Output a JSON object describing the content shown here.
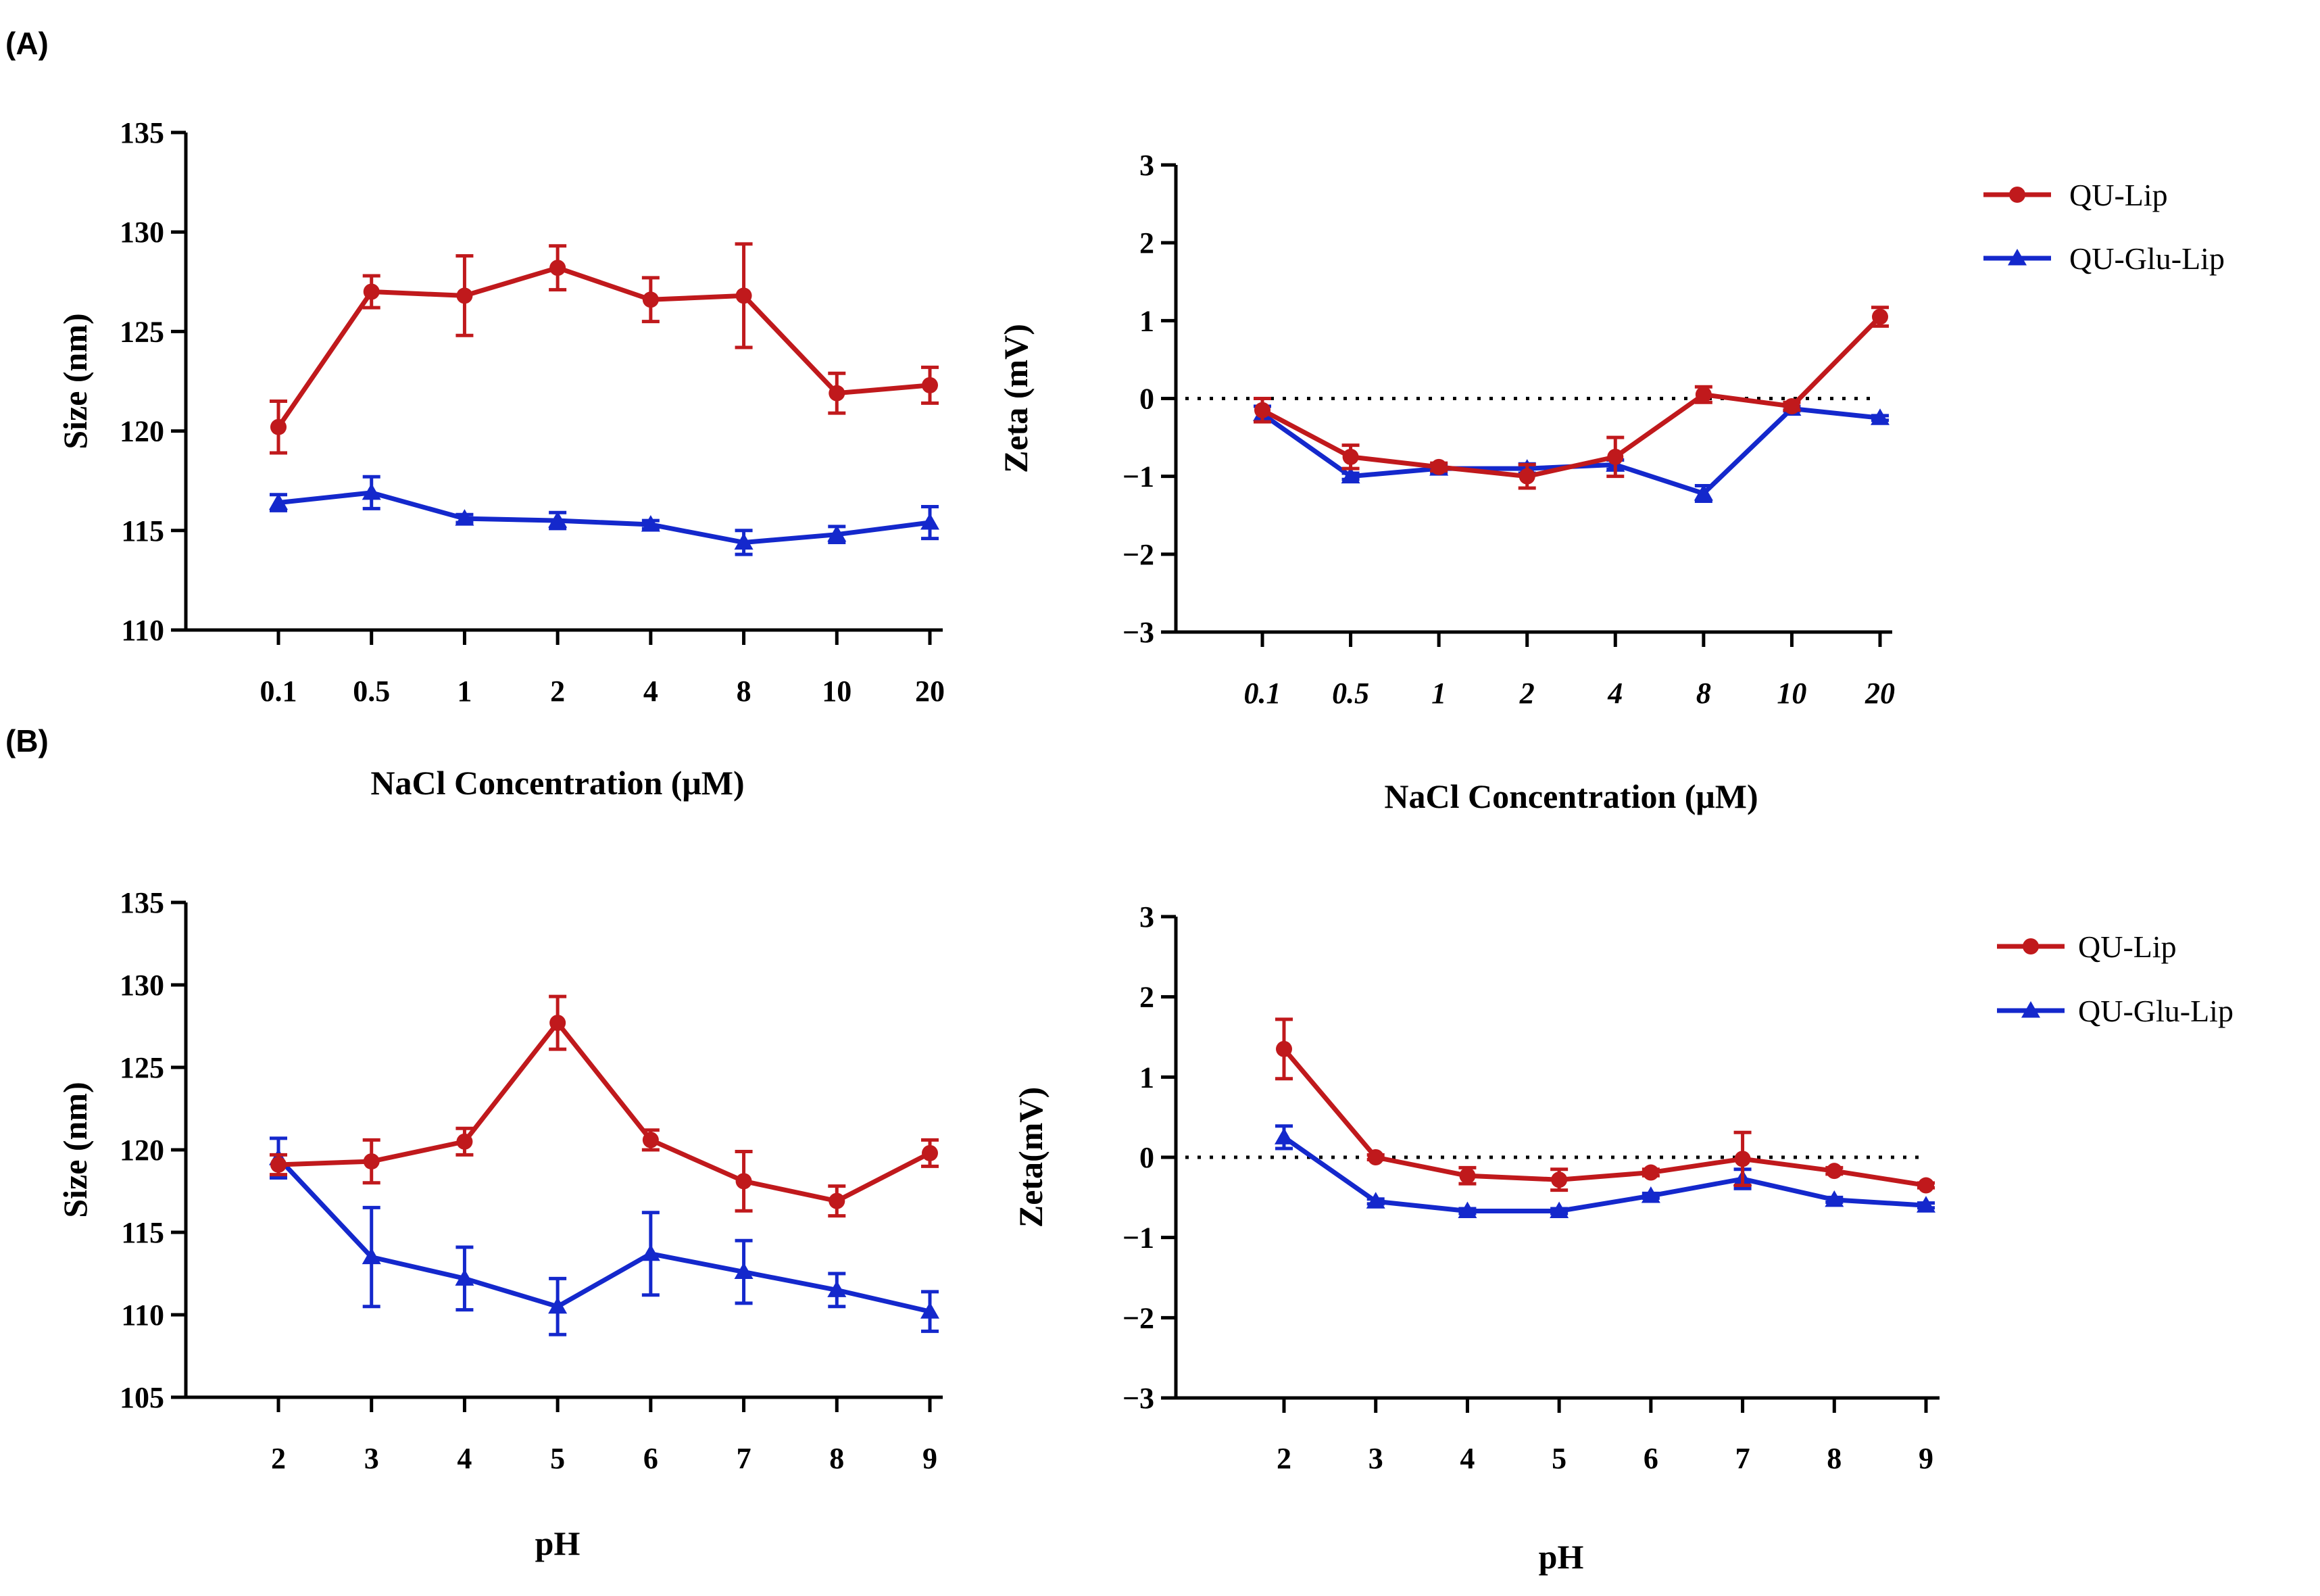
{
  "panel_labels": {
    "a": "(A)",
    "b": "(B)"
  },
  "colors": {
    "qu_lip": "#C0191C",
    "qu_glu_lip": "#1428CC"
  },
  "legend_labels": {
    "qu_lip": "QU-Lip",
    "qu_glu_lip": "QU-Glu-Lip"
  },
  "chart_data": [
    {
      "id": "A-size",
      "type": "line",
      "xlabel": "NaCl Concentration (μM)",
      "ylabel": "Size (nm)",
      "categories": [
        "0.1",
        "0.5",
        "1",
        "2",
        "4",
        "8",
        "10",
        "20"
      ],
      "ylim": [
        110,
        135
      ],
      "yticks": [
        110,
        115,
        120,
        125,
        130,
        135
      ],
      "series": [
        {
          "name": "QU-Lip",
          "marker": "circle",
          "values": [
            120.2,
            127.0,
            126.8,
            128.2,
            126.6,
            126.8,
            121.9,
            122.3
          ],
          "errors": [
            1.3,
            0.8,
            2.0,
            1.1,
            1.1,
            2.6,
            1.0,
            0.9
          ]
        },
        {
          "name": "QU-Glu-Lip",
          "marker": "triangle",
          "values": [
            116.4,
            116.9,
            115.6,
            115.5,
            115.3,
            114.4,
            114.8,
            115.4
          ],
          "errors": [
            0.4,
            0.8,
            0.2,
            0.4,
            0.2,
            0.6,
            0.4,
            0.8
          ]
        }
      ]
    },
    {
      "id": "A-zeta",
      "type": "line",
      "xlabel": "NaCl Concentration (μM)",
      "ylabel": "Zeta (mV)",
      "categories": [
        "0.1",
        "0.5",
        "1",
        "2",
        "4",
        "8",
        "10",
        "20"
      ],
      "ylim": [
        -3,
        3
      ],
      "yticks": [
        -3,
        -2,
        -1,
        0,
        1,
        2,
        3
      ],
      "reference_line": 0,
      "legend": "top-right",
      "series": [
        {
          "name": "QU-Lip",
          "marker": "circle",
          "values": [
            -0.15,
            -0.75,
            -0.88,
            -1.0,
            -0.75,
            0.05,
            -0.1,
            1.05
          ],
          "errors": [
            0.15,
            0.15,
            0.05,
            0.15,
            0.25,
            0.1,
            0.05,
            0.12
          ]
        },
        {
          "name": "QU-Glu-Lip",
          "marker": "triangle",
          "values": [
            -0.2,
            -1.0,
            -0.9,
            -0.9,
            -0.85,
            -1.22,
            -0.13,
            -0.25
          ],
          "errors": [
            0.1,
            0.04,
            0.05,
            0.06,
            0.06,
            0.1,
            0.03,
            0.03
          ]
        }
      ]
    },
    {
      "id": "B-size",
      "type": "line",
      "xlabel": "pH",
      "ylabel": "Size (nm)",
      "categories": [
        "2",
        "3",
        "4",
        "5",
        "6",
        "7",
        "8",
        "9"
      ],
      "ylim": [
        105,
        135
      ],
      "yticks": [
        105,
        110,
        115,
        120,
        125,
        130,
        135
      ],
      "series": [
        {
          "name": "QU-Lip",
          "marker": "circle",
          "values": [
            119.1,
            119.3,
            120.5,
            127.7,
            120.6,
            118.1,
            116.9,
            119.8
          ],
          "errors": [
            0.6,
            1.3,
            0.8,
            1.6,
            0.6,
            1.8,
            0.9,
            0.8
          ]
        },
        {
          "name": "QU-Glu-Lip",
          "marker": "triangle",
          "values": [
            119.5,
            113.5,
            112.2,
            110.5,
            113.7,
            112.6,
            111.5,
            110.2
          ],
          "errors": [
            1.2,
            3.0,
            1.9,
            1.7,
            2.5,
            1.9,
            1.0,
            1.2
          ]
        }
      ]
    },
    {
      "id": "B-zeta",
      "type": "line",
      "xlabel": "pH",
      "ylabel": "Zeta(mV)",
      "categories": [
        "2",
        "3",
        "4",
        "5",
        "6",
        "7",
        "8",
        "9"
      ],
      "ylim": [
        -3,
        3
      ],
      "yticks": [
        -3,
        -2,
        -1,
        0,
        1,
        2,
        3
      ],
      "reference_line": 0,
      "legend": "top-right",
      "series": [
        {
          "name": "QU-Lip",
          "marker": "circle",
          "values": [
            1.35,
            0.0,
            -0.23,
            -0.28,
            -0.19,
            -0.02,
            -0.17,
            -0.35
          ],
          "errors": [
            0.37,
            0.03,
            0.1,
            0.13,
            0.04,
            0.33,
            0.04,
            0.03
          ]
        },
        {
          "name": "QU-Glu-Lip",
          "marker": "triangle",
          "values": [
            0.25,
            -0.55,
            -0.67,
            -0.67,
            -0.48,
            -0.27,
            -0.53,
            -0.6
          ],
          "errors": [
            0.14,
            0.03,
            0.03,
            0.03,
            0.03,
            0.12,
            0.03,
            0.03
          ]
        }
      ]
    }
  ]
}
